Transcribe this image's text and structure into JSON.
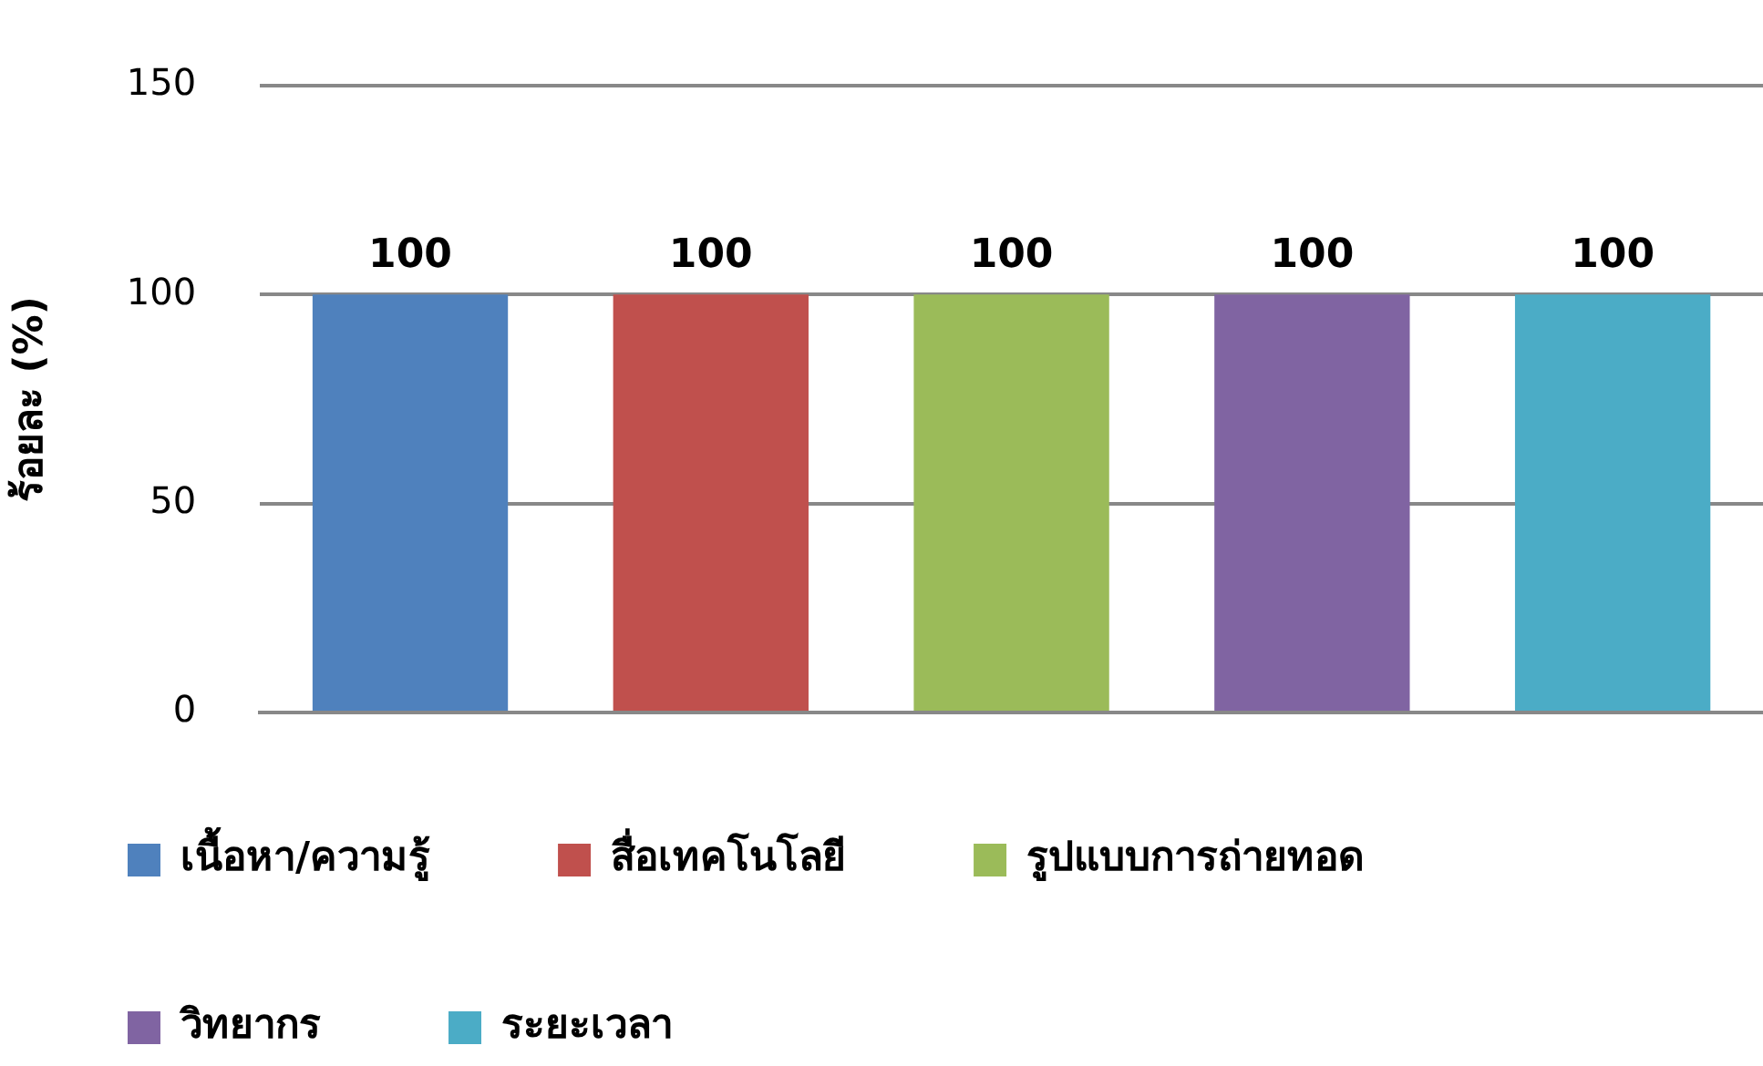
{
  "chart_data": {
    "type": "bar",
    "ylabel": "ร้อยละ (%)",
    "categories": [
      null
    ],
    "series": [
      {
        "name": "เนื้อหา/ความรู้",
        "color": "#4f81bd",
        "values": [
          100
        ]
      },
      {
        "name": "สื่อเทคโนโลยี",
        "color": "#c0504d",
        "values": [
          100
        ]
      },
      {
        "name": "รูปแบบการถ่ายทอด",
        "color": "#9bbb59",
        "values": [
          100
        ]
      },
      {
        "name": "วิทยากร",
        "color": "#8064a2",
        "values": [
          100
        ]
      },
      {
        "name": "ระยะเวลา",
        "color": "#4bacc6",
        "values": [
          100
        ]
      }
    ],
    "ylim": [
      0,
      150
    ],
    "yticks": [
      0,
      50,
      100,
      150
    ],
    "grid": "y",
    "legend": "bottom",
    "data_labels": true,
    "tick_labels": "y"
  }
}
